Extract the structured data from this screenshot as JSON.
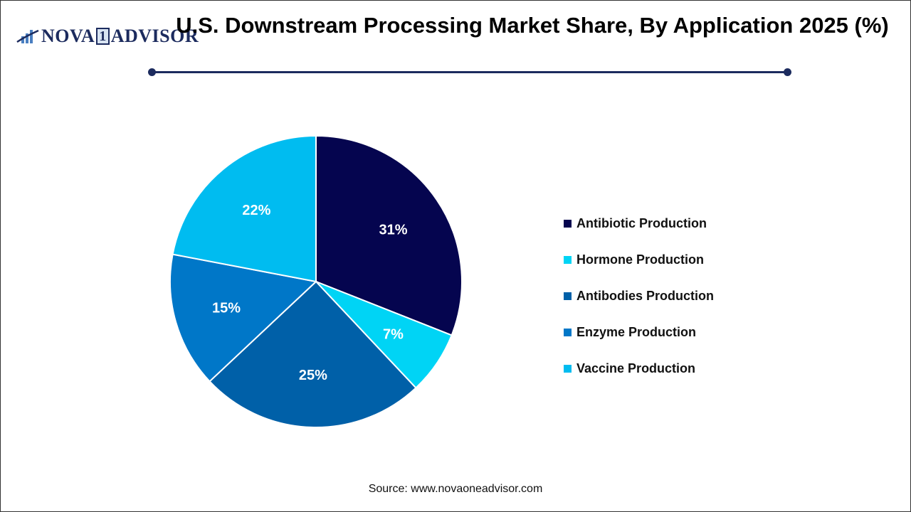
{
  "logo": {
    "text_a": "NOVA",
    "text_one": "1",
    "text_b": "ADVISOR"
  },
  "title": "U.S. Downstream Processing Market Share, By Application 2025 (%)",
  "source": "Source: www.novaoneadvisor.com",
  "chart_data": {
    "type": "pie",
    "title": "U.S. Downstream Processing Market Share, By Application 2025 (%)",
    "categories": [
      "Antibiotic Production",
      "Hormone Production",
      "Antibodies Production",
      "Enzyme Production",
      "Vaccine Production"
    ],
    "values": [
      31,
      7,
      25,
      15,
      22
    ],
    "labels": [
      "31%",
      "7%",
      "25%",
      "15%",
      "22%"
    ],
    "colors": [
      "#05054f",
      "#00d4f5",
      "#0060a8",
      "#0077c8",
      "#00bcf0"
    ],
    "start_angle": "top, clockwise",
    "legend_position": "right"
  }
}
